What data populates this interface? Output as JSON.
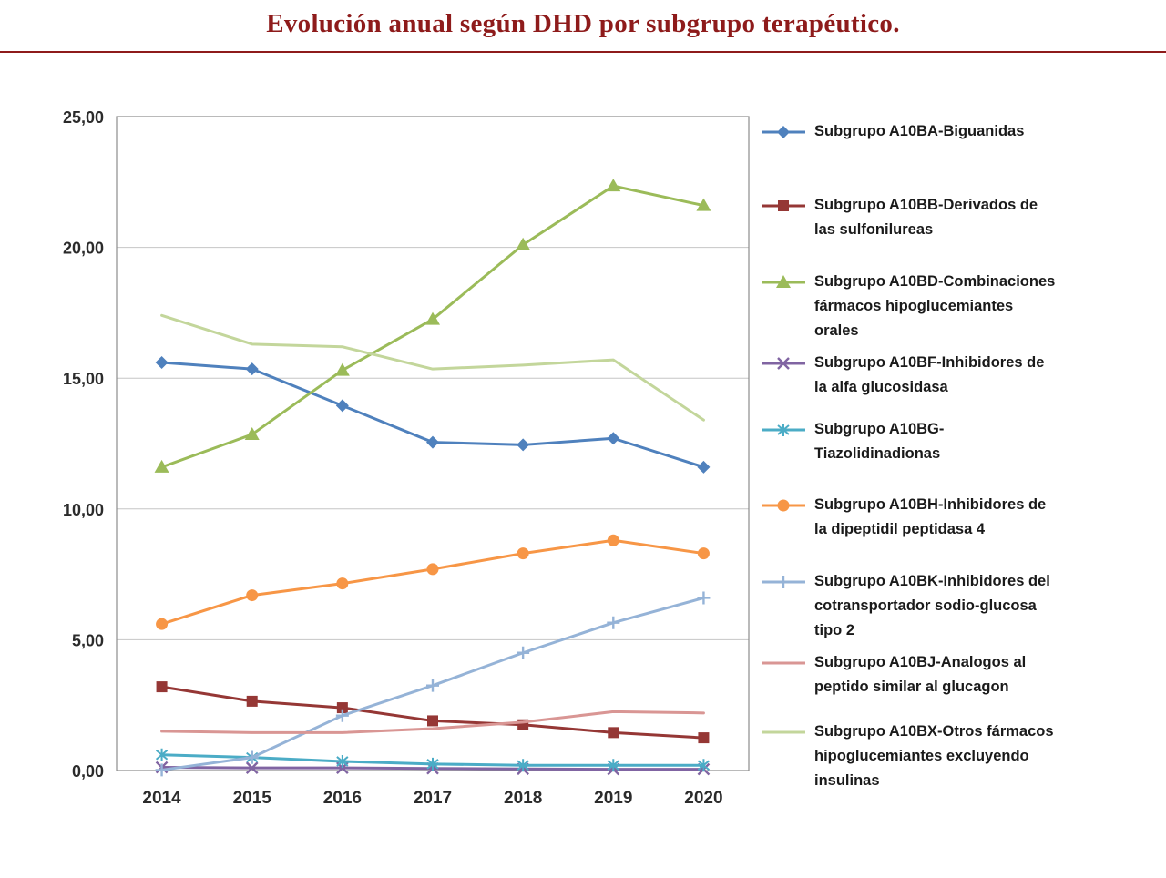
{
  "header": {
    "title": "Evolución anual según DHD por subgrupo terapéutico.",
    "accent_color": "#8E1B1B"
  },
  "chart_data": {
    "type": "line",
    "title": "Evolución anual según DHD por subgrupo terapéutico.",
    "xlabel": "",
    "ylabel": "",
    "x": [
      "2014",
      "2015",
      "2016",
      "2017",
      "2018",
      "2019",
      "2020"
    ],
    "ylim": [
      0,
      25
    ],
    "yticks": {
      "values": [
        0,
        5,
        10,
        15,
        20,
        25
      ],
      "labels": [
        "0,00",
        "5,00",
        "10,00",
        "15,00",
        "20,00",
        "25,00"
      ]
    },
    "grid": true,
    "legend_position": "right",
    "series": [
      {
        "name": "Subgrupo A10BA-Biguanidas",
        "color": "#4F81BD",
        "marker": "diamond",
        "values": [
          15.6,
          15.35,
          13.95,
          12.55,
          12.45,
          12.7,
          11.6
        ]
      },
      {
        "name": "Subgrupo A10BB-Derivados de\nlas sulfonilureas",
        "color": "#953735",
        "marker": "square",
        "values": [
          3.2,
          2.65,
          2.4,
          1.9,
          1.75,
          1.45,
          1.25
        ]
      },
      {
        "name": "Subgrupo A10BD-Combinaciones\nfármacos hipoglucemiantes\norales",
        "color": "#9BBB59",
        "marker": "triangle",
        "values": [
          11.6,
          12.85,
          15.3,
          17.25,
          20.1,
          22.35,
          21.6
        ]
      },
      {
        "name": "Subgrupo A10BF-Inhibidores de\nla alfa glucosidasa",
        "color": "#8064A2",
        "marker": "x",
        "values": [
          0.12,
          0.1,
          0.1,
          0.08,
          0.06,
          0.05,
          0.05
        ]
      },
      {
        "name": "Subgrupo A10BG-\nTiazolidinadionas",
        "color": "#4BACC6",
        "marker": "star",
        "values": [
          0.6,
          0.5,
          0.35,
          0.25,
          0.2,
          0.2,
          0.2
        ]
      },
      {
        "name": "Subgrupo A10BH-Inhibidores de\nla dipeptidil peptidasa 4",
        "color": "#F79646",
        "marker": "circle",
        "values": [
          5.6,
          6.7,
          7.15,
          7.7,
          8.3,
          8.8,
          8.3
        ]
      },
      {
        "name": "Subgrupo A10BK-Inhibidores del\ncotransportador sodio-glucosa\ntipo 2",
        "color": "#95B3D7",
        "marker": "plus",
        "values": [
          0.02,
          0.5,
          2.1,
          3.25,
          4.5,
          5.65,
          6.6
        ]
      },
      {
        "name": "Subgrupo A10BJ-Analogos al\npeptido similar al glucagon",
        "color": "#D99694",
        "marker": "none",
        "values": [
          1.5,
          1.45,
          1.45,
          1.6,
          1.85,
          2.25,
          2.2
        ]
      },
      {
        "name": "Subgrupo A10BX-Otros fármacos\nhipoglucemiantes excluyendo\ninsulinas",
        "color": "#C3D69B",
        "marker": "none",
        "values": [
          17.4,
          16.3,
          16.2,
          15.35,
          15.5,
          15.7,
          13.4
        ]
      }
    ]
  }
}
